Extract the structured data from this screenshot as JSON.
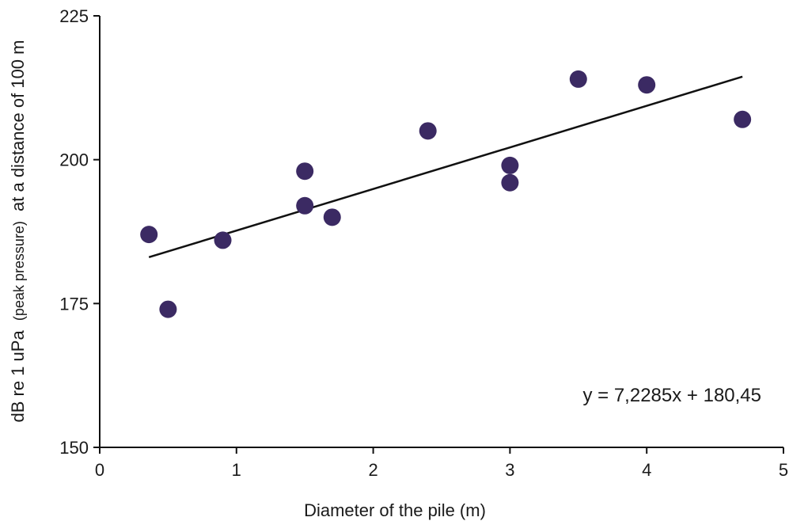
{
  "chart_data": {
    "type": "scatter",
    "title": "",
    "xlabel": "Diameter of the pile (m)",
    "ylabel": {
      "part1": "dB re 1 uPa",
      "part2": "(peak pressure)",
      "part3": "at a distance of 100 m"
    },
    "xlim": [
      0,
      5
    ],
    "ylim": [
      150,
      225
    ],
    "x_ticks": [
      0,
      1,
      2,
      3,
      4,
      5
    ],
    "y_ticks": [
      150,
      175,
      200,
      225
    ],
    "grid": false,
    "series": [
      {
        "points": [
          {
            "x": 0.36,
            "y": 187
          },
          {
            "x": 0.5,
            "y": 174
          },
          {
            "x": 0.9,
            "y": 186
          },
          {
            "x": 1.5,
            "y": 198
          },
          {
            "x": 1.5,
            "y": 192
          },
          {
            "x": 1.7,
            "y": 190
          },
          {
            "x": 2.4,
            "y": 205
          },
          {
            "x": 3.0,
            "y": 199
          },
          {
            "x": 3.0,
            "y": 196
          },
          {
            "x": 3.5,
            "y": 214
          },
          {
            "x": 4.0,
            "y": 213
          },
          {
            "x": 4.7,
            "y": 207
          }
        ],
        "color": "#3b2a63"
      }
    ],
    "trendline": {
      "slope": 7.2285,
      "intercept": 180.45,
      "x_start": 0.36,
      "x_end": 4.7,
      "color": "#111111",
      "equation": "y = 7,2285x + 180,45"
    }
  }
}
